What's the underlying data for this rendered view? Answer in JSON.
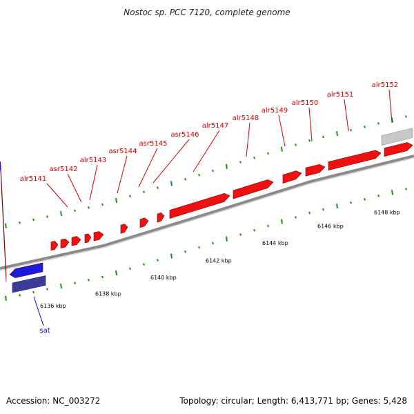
{
  "title": "Nostoc sp. PCC 7120, complete genome",
  "footer": {
    "accession": "Accession: NC_003272",
    "topology": "Topology: circular; Length: 6,413,771 bp; Genes: 5,428"
  },
  "colors": {
    "forward": "#ee1111",
    "reverse": "#1a1ae0",
    "reverse_dark": "#3b3b9a",
    "other": "#c8c8c8",
    "backbone": "#8a8a8a",
    "ticks": "#1f8a1f",
    "forward_label": "#cc0000",
    "reverse_label": "#0000cc"
  },
  "scale_labels": [
    "6136 kbp",
    "6138 kbp",
    "6140 kbp",
    "6142 kbp",
    "6144 kbp",
    "6146 kbp",
    "6148 kbp"
  ],
  "forward_genes": [
    "alr5141",
    "asr5142",
    "alr5143",
    "asr5144",
    "asr5145",
    "asr5146",
    "alr5147",
    "alr5148",
    "alr5149",
    "alr5150",
    "alr5151",
    "alr5152"
  ],
  "reverse_genes": [
    "sat"
  ]
}
